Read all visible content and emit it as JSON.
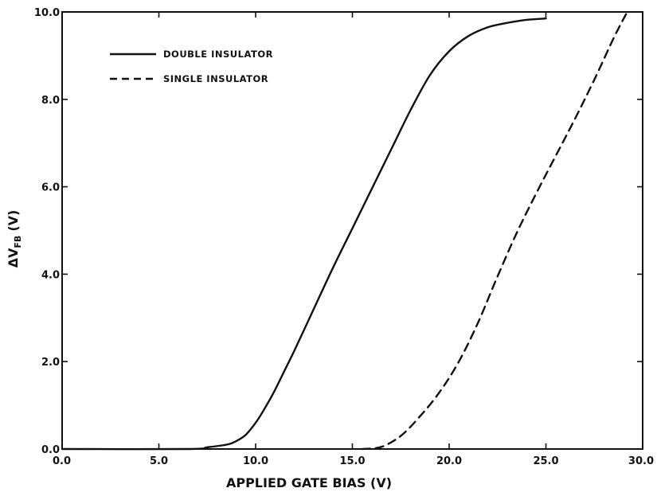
{
  "chart_data": {
    "type": "line",
    "title": "",
    "xlabel": "APPLIED GATE BIAS (V)",
    "ylabel": "ΔV",
    "ylabel_subscript": "FB",
    "ylabel_unit": "(V)",
    "xlim": [
      0,
      30
    ],
    "ylim": [
      0,
      10
    ],
    "xticks": [
      0,
      5,
      10,
      15,
      20,
      25,
      30
    ],
    "xtick_labels": [
      "0.0",
      "5.0",
      "10.0",
      "15.0",
      "20.0",
      "25.0",
      "30.0"
    ],
    "yticks": [
      0,
      2,
      4,
      6,
      8,
      10
    ],
    "ytick_labels": [
      "0.0",
      "2.0",
      "4.0",
      "6.0",
      "8.0",
      "10.0"
    ],
    "grid": false,
    "legend_position": "top-left",
    "series": [
      {
        "name": "DOUBLE INSULATOR",
        "style": "solid",
        "color": "#111111",
        "x": [
          0,
          6.5,
          7.5,
          8.5,
          9.0,
          9.5,
          10.0,
          10.5,
          11.0,
          11.5,
          12.0,
          13.0,
          14.0,
          15.0,
          16.0,
          17.0,
          18.0,
          19.0,
          20.0,
          21.0,
          22.0,
          23.0,
          24.0,
          25.0
        ],
        "y": [
          0,
          0,
          0.04,
          0.1,
          0.18,
          0.33,
          0.6,
          0.95,
          1.35,
          1.8,
          2.25,
          3.2,
          4.15,
          5.05,
          5.95,
          6.85,
          7.75,
          8.55,
          9.1,
          9.45,
          9.65,
          9.75,
          9.82,
          9.85
        ]
      },
      {
        "name": "SINGLE INSULATOR",
        "style": "dashed",
        "color": "#111111",
        "x": [
          15.5,
          16.5,
          17.5,
          18.5,
          19.5,
          20.5,
          21.5,
          22.5,
          23.5,
          24.5,
          25.5,
          26.5,
          27.5,
          28.5,
          29.2
        ],
        "y": [
          0,
          0.05,
          0.3,
          0.75,
          1.3,
          2.0,
          2.9,
          3.95,
          4.95,
          5.85,
          6.7,
          7.55,
          8.45,
          9.4,
          10.0
        ]
      }
    ]
  }
}
